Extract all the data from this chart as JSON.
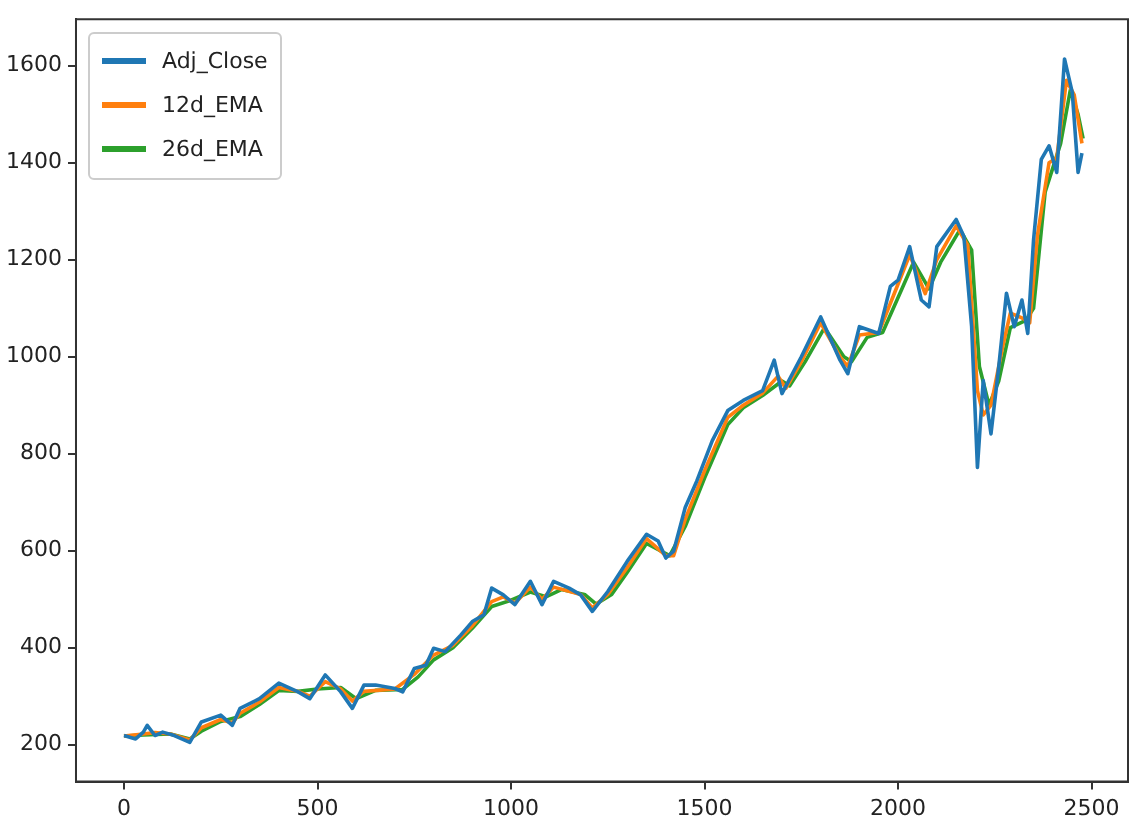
{
  "chart_data": {
    "type": "line",
    "xlim": [
      -124,
      2594
    ],
    "xticks": [
      0,
      500,
      1000,
      1500,
      2000,
      2500
    ],
    "ylim": [
      124,
      1696
    ],
    "yticks": [
      200,
      400,
      600,
      800,
      1000,
      1200,
      1400,
      1600
    ],
    "grid": false,
    "legend": "top left",
    "marker": "none",
    "line_style": "solid",
    "series": [
      {
        "name": "Adj_Close",
        "color": "#1f77b4",
        "x": [
          0,
          30,
          50,
          60,
          80,
          100,
          130,
          170,
          200,
          250,
          280,
          300,
          350,
          400,
          450,
          480,
          520,
          560,
          590,
          620,
          650,
          700,
          720,
          750,
          780,
          800,
          830,
          870,
          900,
          930,
          950,
          980,
          1010,
          1050,
          1080,
          1110,
          1150,
          1180,
          1210,
          1250,
          1300,
          1350,
          1380,
          1400,
          1420,
          1450,
          1480,
          1520,
          1560,
          1600,
          1650,
          1680,
          1700,
          1750,
          1800,
          1850,
          1870,
          1900,
          1950,
          1980,
          2000,
          2030,
          2060,
          2080,
          2100,
          2150,
          2170,
          2190,
          2205,
          2220,
          2240,
          2260,
          2280,
          2300,
          2320,
          2335,
          2350,
          2370,
          2390,
          2410,
          2430,
          2450,
          2465,
          2475
        ],
        "values": [
          219,
          212,
          226,
          240,
          219,
          226,
          219,
          205,
          247,
          261,
          240,
          275,
          295,
          327,
          309,
          295,
          344,
          309,
          275,
          323,
          323,
          316,
          309,
          357,
          364,
          399,
          392,
          426,
          454,
          468,
          523,
          509,
          489,
          537,
          489,
          537,
          523,
          509,
          475,
          516,
          578,
          634,
          620,
          585,
          599,
          689,
          744,
          827,
          889,
          910,
          930,
          993,
          924,
          1000,
          1082,
          993,
          965,
          1062,
          1048,
          1145,
          1158,
          1227,
          1117,
          1103,
          1227,
          1283,
          1248,
          1062,
          772,
          951,
          841,
          979,
          1131,
          1062,
          1117,
          1048,
          1241,
          1407,
          1435,
          1380,
          1614,
          1545,
          1380,
          1420
        ]
      },
      {
        "name": "12d_EMA",
        "color": "#ff7f0e",
        "x": [
          0,
          50,
          80,
          120,
          170,
          200,
          250,
          280,
          300,
          350,
          400,
          450,
          480,
          520,
          560,
          590,
          620,
          700,
          750,
          800,
          850,
          900,
          950,
          980,
          1010,
          1050,
          1080,
          1110,
          1180,
          1210,
          1250,
          1300,
          1350,
          1400,
          1420,
          1450,
          1500,
          1560,
          1600,
          1650,
          1690,
          1710,
          1750,
          1800,
          1850,
          1870,
          1900,
          1950,
          2000,
          2030,
          2070,
          2100,
          2150,
          2180,
          2205,
          2220,
          2240,
          2270,
          2290,
          2320,
          2340,
          2360,
          2390,
          2410,
          2435,
          2455,
          2475
        ],
        "values": [
          218,
          222,
          225,
          222,
          210,
          235,
          252,
          245,
          265,
          288,
          318,
          310,
          300,
          330,
          315,
          290,
          310,
          315,
          345,
          385,
          405,
          445,
          495,
          505,
          492,
          525,
          500,
          525,
          510,
          482,
          510,
          565,
          625,
          590,
          590,
          665,
          765,
          875,
          900,
          925,
          960,
          935,
          990,
          1070,
          1000,
          980,
          1045,
          1050,
          1150,
          1210,
          1130,
          1200,
          1270,
          1230,
          930,
          880,
          900,
          1020,
          1090,
          1080,
          1070,
          1250,
          1400,
          1410,
          1570,
          1540,
          1440
        ]
      },
      {
        "name": "26d_EMA",
        "color": "#2ca02c",
        "x": [
          0,
          50,
          120,
          170,
          200,
          250,
          300,
          350,
          400,
          450,
          500,
          560,
          600,
          650,
          720,
          760,
          800,
          850,
          900,
          950,
          1000,
          1050,
          1090,
          1130,
          1190,
          1220,
          1260,
          1300,
          1350,
          1410,
          1450,
          1500,
          1560,
          1600,
          1650,
          1700,
          1720,
          1760,
          1810,
          1860,
          1880,
          1920,
          1960,
          2010,
          2040,
          2080,
          2110,
          2160,
          2190,
          2210,
          2235,
          2260,
          2290,
          2330,
          2350,
          2380,
          2420,
          2445,
          2465,
          2478
        ],
        "values": [
          218,
          220,
          222,
          212,
          228,
          248,
          258,
          283,
          312,
          310,
          315,
          318,
          295,
          312,
          314,
          340,
          375,
          400,
          440,
          485,
          498,
          515,
          505,
          520,
          510,
          490,
          510,
          555,
          615,
          590,
          650,
          750,
          860,
          895,
          920,
          950,
          940,
          990,
          1060,
          1000,
          990,
          1040,
          1050,
          1140,
          1195,
          1140,
          1195,
          1262,
          1220,
          980,
          900,
          950,
          1060,
          1075,
          1100,
          1340,
          1440,
          1550,
          1500,
          1450
        ]
      }
    ]
  }
}
